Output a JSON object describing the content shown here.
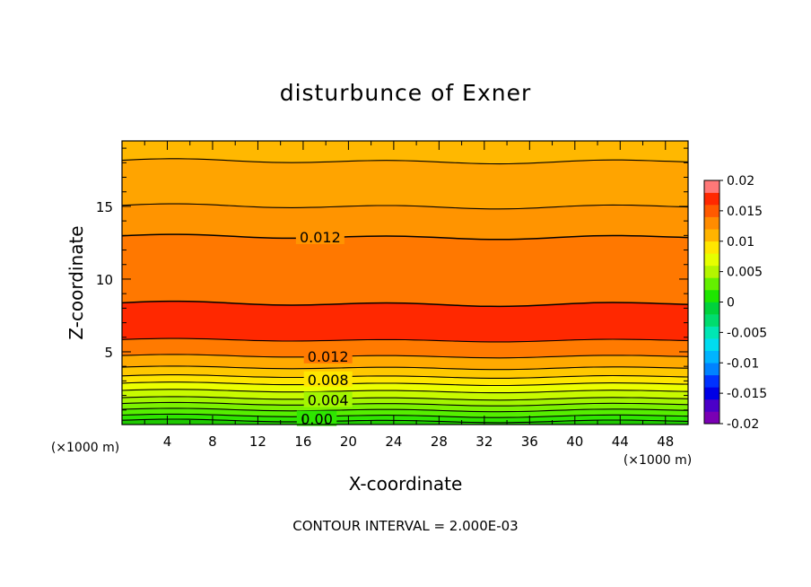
{
  "chart_data": {
    "type": "contour",
    "title": "disturbunce of Exner",
    "xlabel": "X-coordinate",
    "ylabel": "Z-coordinate",
    "x_unit": "(×1000 m)",
    "xlim": [
      0,
      50
    ],
    "ylim": [
      0,
      19.5
    ],
    "x_ticks": [
      4,
      8,
      12,
      16,
      20,
      24,
      28,
      32,
      36,
      40,
      44,
      48
    ],
    "y_ticks": [
      5,
      10,
      15
    ],
    "footer": "CONTOUR INTERVAL = 2.000E-03",
    "contour_labels": [
      {
        "text": "0.012",
        "x": 17.5,
        "z": 12.9
      },
      {
        "text": "0.012",
        "x": 18.2,
        "z": 4.7
      },
      {
        "text": "0.008",
        "x": 18.2,
        "z": 3.1
      },
      {
        "text": "0.004",
        "x": 18.2,
        "z": 1.7
      },
      {
        "text": "0.00",
        "x": 17.2,
        "z": 0.4
      }
    ],
    "colorbar": {
      "labels": [
        "0.02",
        "0.015",
        "0.01",
        "0.005",
        "0",
        "-0.005",
        "-0.01",
        "-0.015",
        "-0.02"
      ],
      "levels": [
        -0.02,
        -0.018,
        -0.016,
        -0.014,
        -0.012,
        -0.01,
        -0.008,
        -0.006,
        -0.004,
        -0.002,
        0,
        0.002,
        0.004,
        0.006,
        0.008,
        0.01,
        0.012,
        0.014,
        0.016,
        0.018,
        0.02
      ],
      "colors": [
        "#7a00b4",
        "#4b00c8",
        "#0000e6",
        "#0032ff",
        "#0082ff",
        "#00b4ff",
        "#00dcf0",
        "#00e6b4",
        "#00dc6e",
        "#00d23c",
        "#1ee600",
        "#64f000",
        "#b4f500",
        "#e6ff00",
        "#ffe600",
        "#ffb400",
        "#ff8c00",
        "#ff5a00",
        "#ff2800",
        "#ff7878"
      ]
    },
    "field_bands": [
      {
        "z_from": 0.0,
        "z_to": 0.25,
        "color": "#1ec800"
      },
      {
        "z_from": 0.25,
        "z_to": 0.6,
        "color": "#2ee600"
      },
      {
        "z_from": 0.6,
        "z_to": 1.0,
        "color": "#55ee00"
      },
      {
        "z_from": 1.0,
        "z_to": 1.4,
        "color": "#7cf200"
      },
      {
        "z_from": 1.4,
        "z_to": 1.8,
        "color": "#a4f500"
      },
      {
        "z_from": 1.8,
        "z_to": 2.3,
        "color": "#c8fa00"
      },
      {
        "z_from": 2.3,
        "z_to": 2.8,
        "color": "#ecff00"
      },
      {
        "z_from": 2.8,
        "z_to": 3.3,
        "color": "#ffe600"
      },
      {
        "z_from": 3.3,
        "z_to": 3.9,
        "color": "#ffc800"
      },
      {
        "z_from": 3.9,
        "z_to": 4.7,
        "color": "#ffaa00"
      },
      {
        "z_from": 4.7,
        "z_to": 5.8,
        "color": "#ff7a00"
      },
      {
        "z_from": 5.8,
        "z_to": 8.3,
        "color": "#ff2800"
      },
      {
        "z_from": 8.3,
        "z_to": 12.9,
        "color": "#ff7800"
      },
      {
        "z_from": 12.9,
        "z_to": 15.0,
        "color": "#ff9400"
      },
      {
        "z_from": 15.0,
        "z_to": 18.1,
        "color": "#ffa400"
      },
      {
        "z_from": 18.1,
        "z_to": 19.5,
        "color": "#ffb800"
      }
    ]
  }
}
